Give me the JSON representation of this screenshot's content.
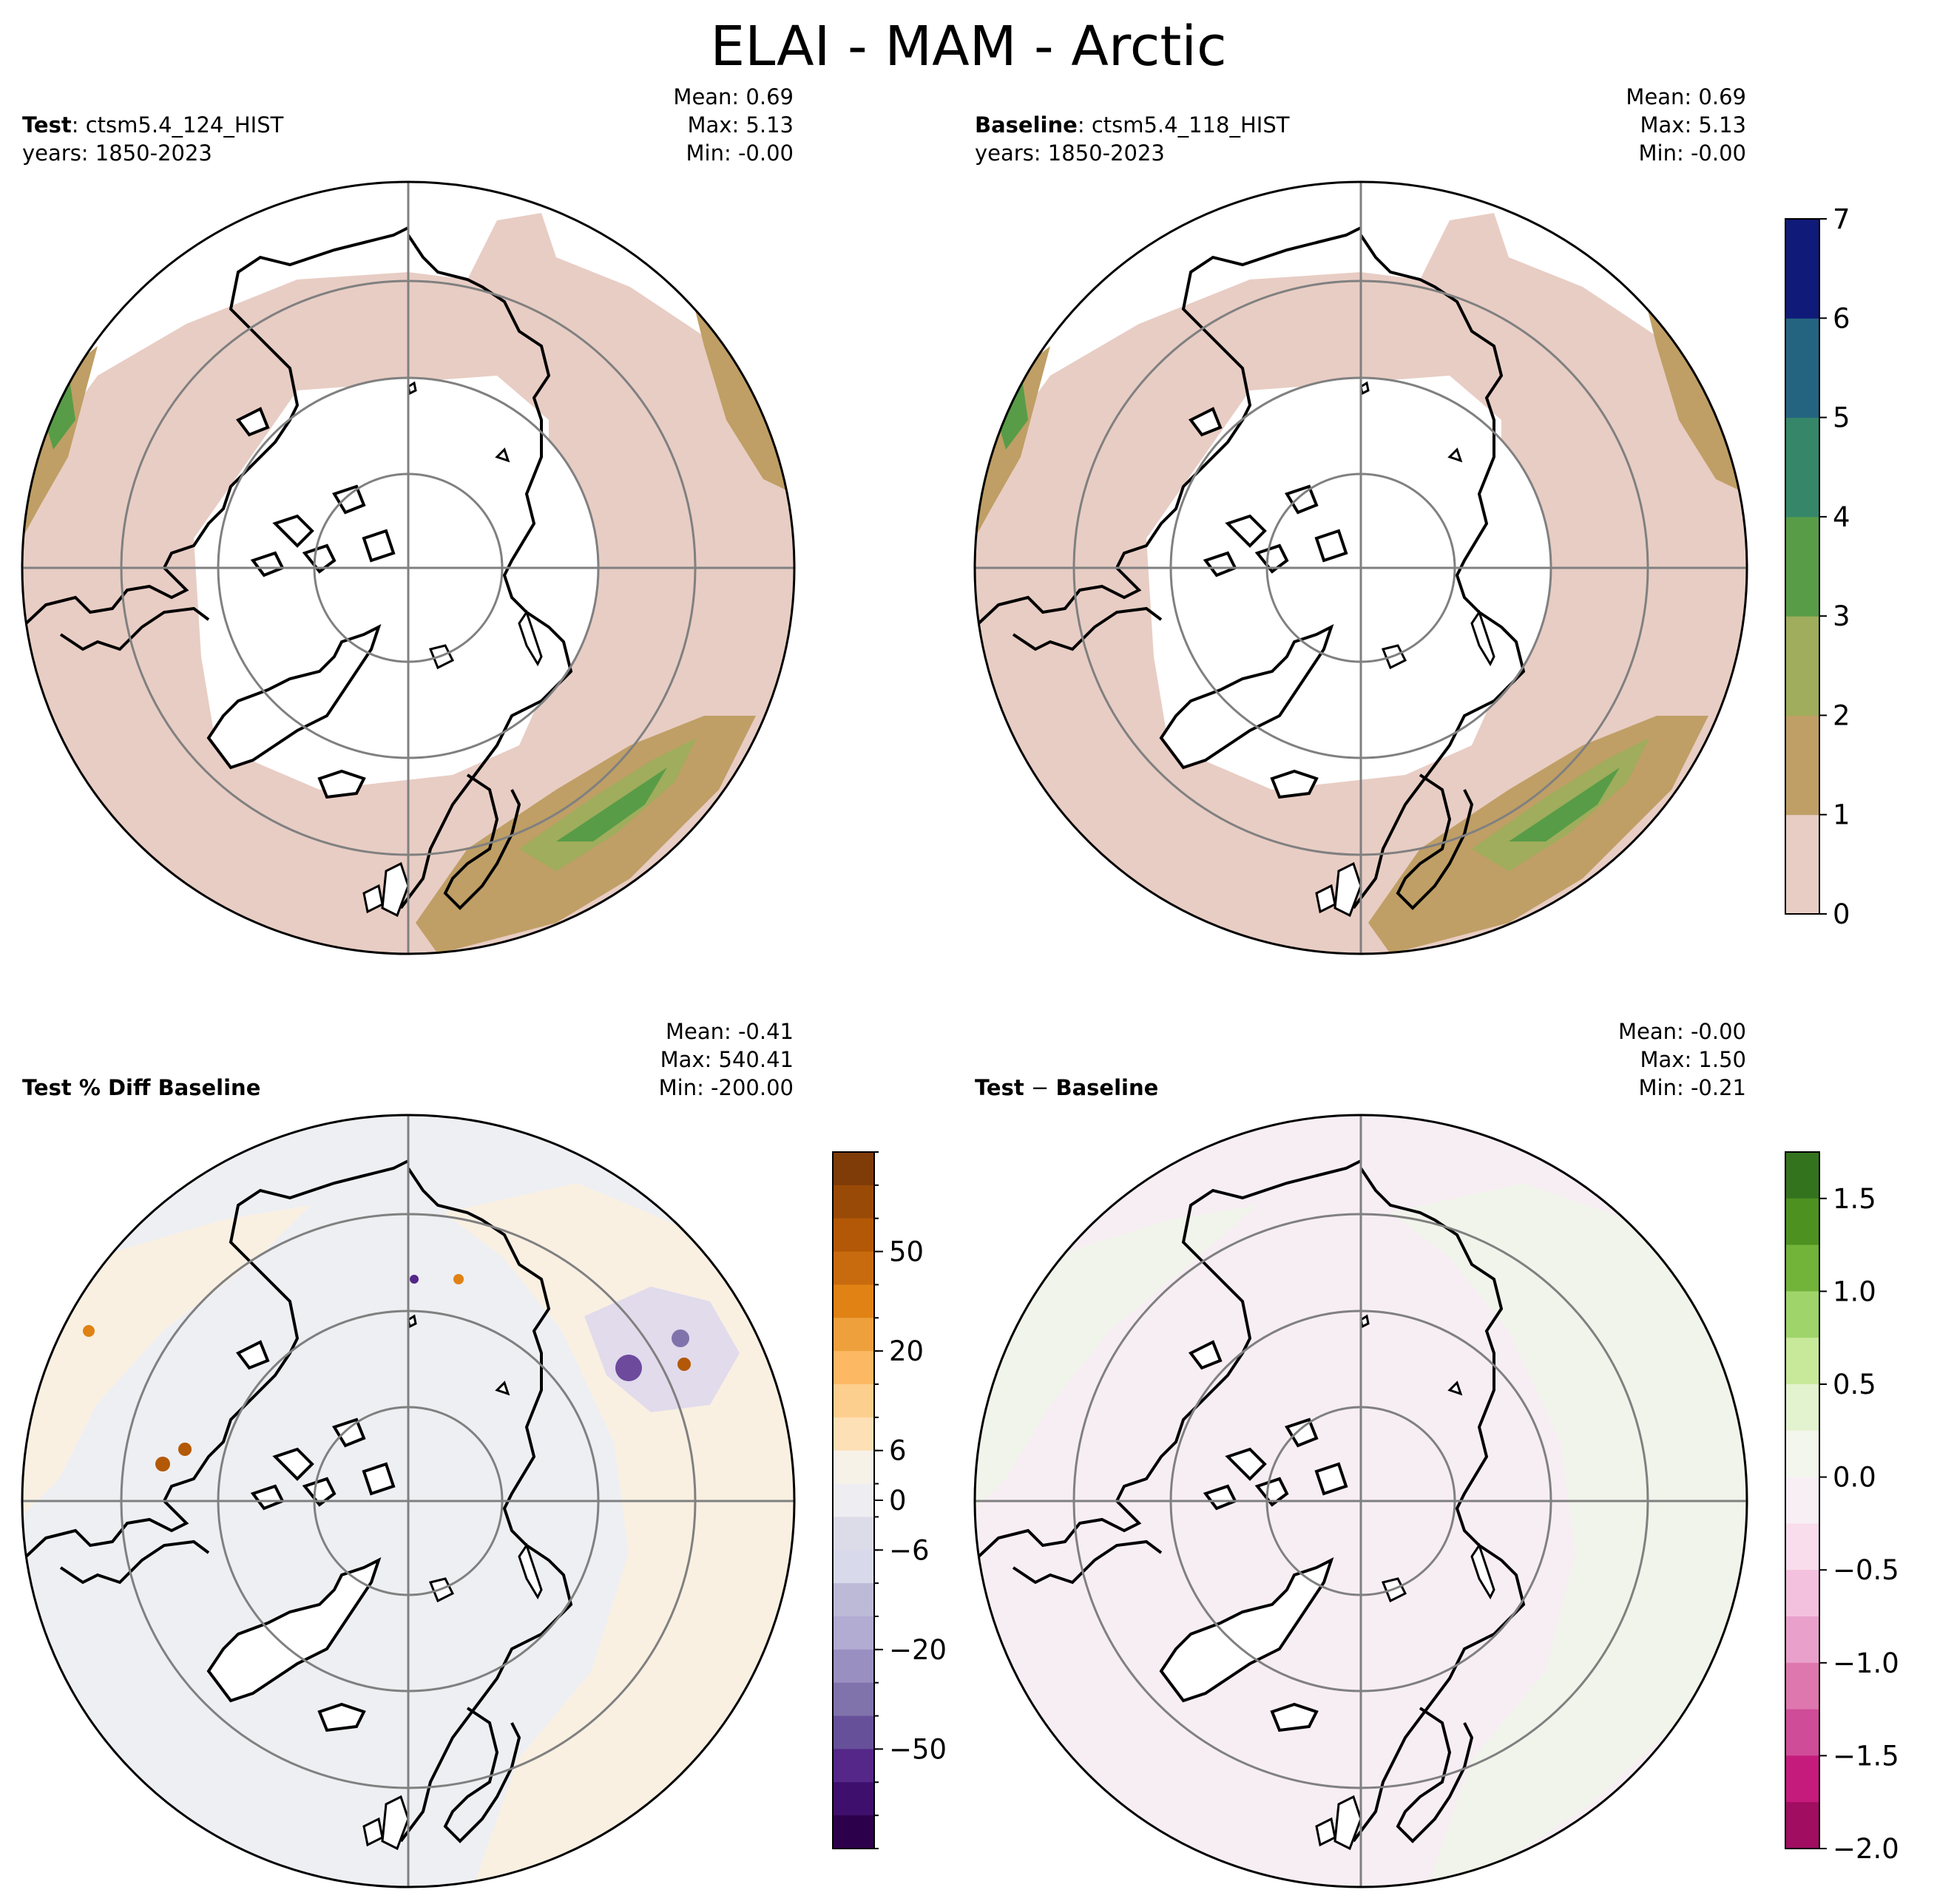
{
  "title": "ELAI - MAM - Arctic",
  "panels": [
    {
      "id": "test",
      "label_bold": "Test",
      "label_sep": ": ",
      "label_rest": "ctsm5.4_124_HIST",
      "years": "years: 1850-2023",
      "mean": "Mean:  0.69",
      "max": "Max:  5.13",
      "min": "Min: -0.00"
    },
    {
      "id": "baseline",
      "label_bold": "Baseline",
      "label_sep": ": ",
      "label_rest": "ctsm5.4_118_HIST",
      "years": "years: 1850-2023",
      "mean": "Mean:  0.69",
      "max": "Max:  5.13",
      "min": "Min: -0.00"
    },
    {
      "id": "pctdiff",
      "label_bold": "Test % Diff Baseline",
      "label_sep": "",
      "label_rest": "",
      "years": "",
      "mean": "Mean: -0.41",
      "max": "Max: 540.41",
      "min": "Min: -200.00"
    },
    {
      "id": "diff",
      "label_bold": "Test",
      "label_sep": " − ",
      "label_rest": "",
      "label_bold2": "Baseline",
      "years": "",
      "mean": "Mean: -0.00",
      "max": "Max:  1.50",
      "min": "Min: -0.21"
    }
  ],
  "colorbars": {
    "elai": {
      "ticks": [
        "0",
        "1",
        "2",
        "3",
        "4",
        "5",
        "6",
        "7"
      ],
      "colors": [
        "#e8cdc4",
        "#bf9f65",
        "#9fad5c",
        "#589c47",
        "#36876a",
        "#256481",
        "#101a78"
      ]
    },
    "pctdiff": {
      "ticks": [
        "50",
        "20",
        "6",
        "0",
        "−6",
        "−20",
        "−50"
      ],
      "colors_top_to_bottom": [
        "#7f3b08",
        "#9a4a07",
        "#b35806",
        "#c86a0e",
        "#e08214",
        "#eea03d",
        "#fdb863",
        "#fdcf8e",
        "#fee0b6",
        "#f7f2e7",
        "#eeeef2",
        "#dcdbe8",
        "#d8daeb",
        "#bdbad8",
        "#b2abd2",
        "#9a8fc1",
        "#8073ac",
        "#67509a",
        "#542788",
        "#3f0f6d",
        "#2d004b"
      ]
    },
    "diff": {
      "ticks": [
        "1.5",
        "1.0",
        "0.5",
        "0.0",
        "−0.5",
        "−1.0",
        "−1.5",
        "−2.0"
      ],
      "colors_top_to_bottom": [
        "#34731e",
        "#4d9221",
        "#72b33a",
        "#9fd46b",
        "#c8e99a",
        "#e4f3cf",
        "#f3f6ec",
        "#f7eff4",
        "#f9ddec",
        "#f3c1de",
        "#e9a1cb",
        "#de77ae",
        "#cf4c98",
        "#c51b7d",
        "#a10d61"
      ]
    }
  },
  "map_fills": {
    "test": [
      "#e8cdc4",
      "#bf9f65",
      "#589c47",
      "#9fad5c"
    ],
    "baseline": [
      "#e8cdc4",
      "#bf9f65",
      "#589c47",
      "#9fad5c"
    ],
    "pctdiff": [
      "#eeeff3",
      "#f9f0e2",
      "#e1dbec",
      "#6d4a9c"
    ],
    "diff": [
      "#f7eef3",
      "#f1f4ea"
    ]
  }
}
